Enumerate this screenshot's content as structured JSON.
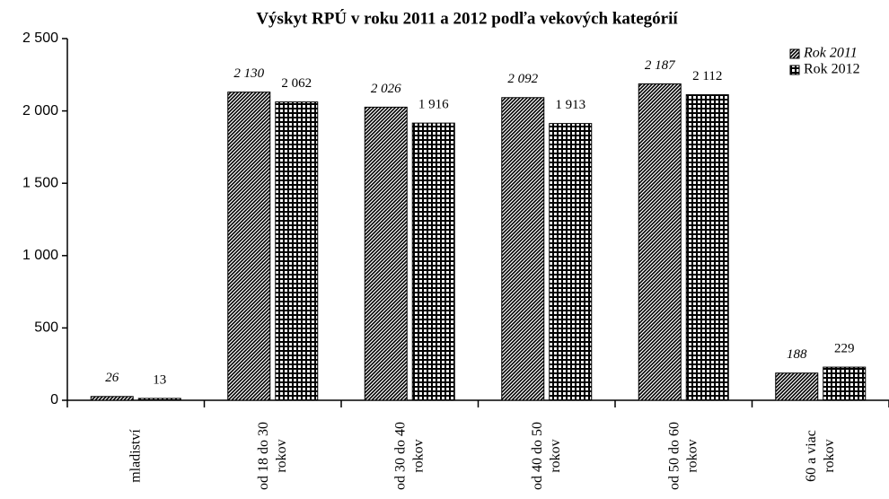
{
  "chart_data": {
    "type": "bar",
    "title": "Výskyt RPÚ v roku 2011 a 2012 podľa vekových kategórií",
    "categories": [
      [
        "mladiství"
      ],
      [
        "od 18 do 30",
        "rokov"
      ],
      [
        "od 30 do 40",
        "rokov"
      ],
      [
        "od 40 do 50",
        "rokov"
      ],
      [
        "od 50 do 60",
        "rokov"
      ],
      [
        "60 a viac",
        "rokov"
      ]
    ],
    "series": [
      {
        "name": "Rok 2011",
        "color": "#000000",
        "pattern": "diagonal",
        "italic": true,
        "values": [
          26,
          2130,
          2026,
          2092,
          2187,
          188
        ],
        "value_labels": [
          "26",
          "2 130",
          "2 026",
          "2 092",
          "2 187",
          "188"
        ]
      },
      {
        "name": "Rok 2012",
        "color": "#000000",
        "pattern": "grid",
        "italic": false,
        "values": [
          13,
          2062,
          1916,
          1913,
          2112,
          229
        ],
        "value_labels": [
          "13",
          "2 062",
          "1 916",
          "1 913",
          "2 112",
          "229"
        ]
      }
    ],
    "ylim": [
      0,
      2500
    ],
    "yticks": [
      0,
      500,
      {
        "value": 1000,
        "label": "1 000"
      },
      {
        "value": 1500,
        "label": "1 500"
      },
      {
        "value": 2000,
        "label": "2 000"
      },
      {
        "value": 2500,
        "label": "2 500"
      }
    ],
    "grid": false,
    "legend": "top-right"
  }
}
